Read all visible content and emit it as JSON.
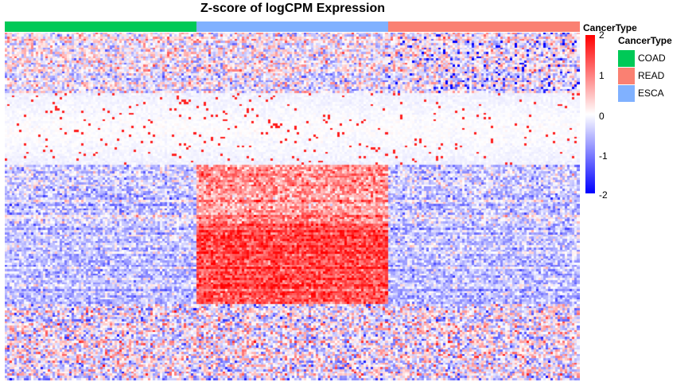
{
  "chart_data": {
    "type": "heatmap",
    "title": "Z-score of logCPM Expression",
    "column_annotation": {
      "name": "CancerType",
      "groups": [
        {
          "label": "COAD",
          "color": "#00C957",
          "fraction": 0.333
        },
        {
          "label": "ESCA",
          "color": "#80B1FF",
          "fraction": 0.333
        },
        {
          "label": "READ",
          "color": "#FA8072",
          "fraction": 0.334
        }
      ]
    },
    "color_scale": {
      "min": -2,
      "max": 2,
      "low_color": "#0000FF",
      "mid_color": "#FFFFFF",
      "high_color": "#FF0000",
      "ticks": [
        "2",
        "1",
        "0",
        "-1",
        "-2"
      ]
    },
    "legend": {
      "title": "CancerType",
      "items": [
        {
          "label": "COAD",
          "color": "#00C957"
        },
        {
          "label": "READ",
          "color": "#FA8072"
        },
        {
          "label": "ESCA",
          "color": "#80B1FF"
        }
      ]
    },
    "n_rows": 160,
    "n_columns": 240,
    "row_clusters": [
      {
        "start": 0.0,
        "end": 0.17,
        "description": "mixed red/blue, blue spots in READ"
      },
      {
        "start": 0.17,
        "end": 0.38,
        "description": "near-zero band (white)"
      },
      {
        "start": 0.38,
        "end": 0.55,
        "description": "high in ESCA"
      },
      {
        "start": 0.55,
        "end": 0.78,
        "description": "strongly high in ESCA, low elsewhere"
      },
      {
        "start": 0.78,
        "end": 1.0,
        "description": "mixed"
      }
    ]
  }
}
